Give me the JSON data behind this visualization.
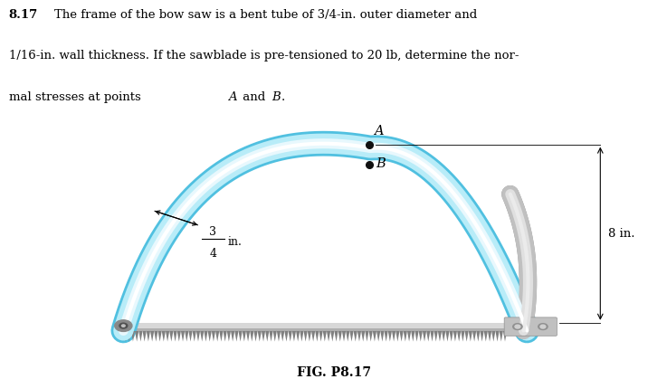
{
  "tube_color_light": "#b8ecf8",
  "tube_color_mid": "#7dd8f0",
  "tube_color_dark": "#50c0e0",
  "tube_color_white": "#e8f8fd",
  "blade_color": "#c8c8c8",
  "blade_dark": "#a0a0a0",
  "bracket_color": "#c0c0c0",
  "bracket_dark": "#909090",
  "bracket_light": "#e0e0e0",
  "pin_color": "#888888",
  "tooth_color": "#808080",
  "point_color": "#111111",
  "background": "#ffffff",
  "fig_label": "FIG. P8.17",
  "label_A": "A",
  "label_B": "B",
  "dim_frac_num": "3",
  "dim_frac_den": "4",
  "dim_in": "in.",
  "dim_8": "8 in.",
  "text_bold": "8.17",
  "text_line1": "The frame of the bow saw is a bent tube of 3/4-in. outer diameter and",
  "text_line2": "1/16-in. wall thickness. If the sawblade is pre-tensioned to 20 lb, determine the nor-",
  "text_line3": "mal stresses at points A and B.",
  "tube_lw": 16
}
